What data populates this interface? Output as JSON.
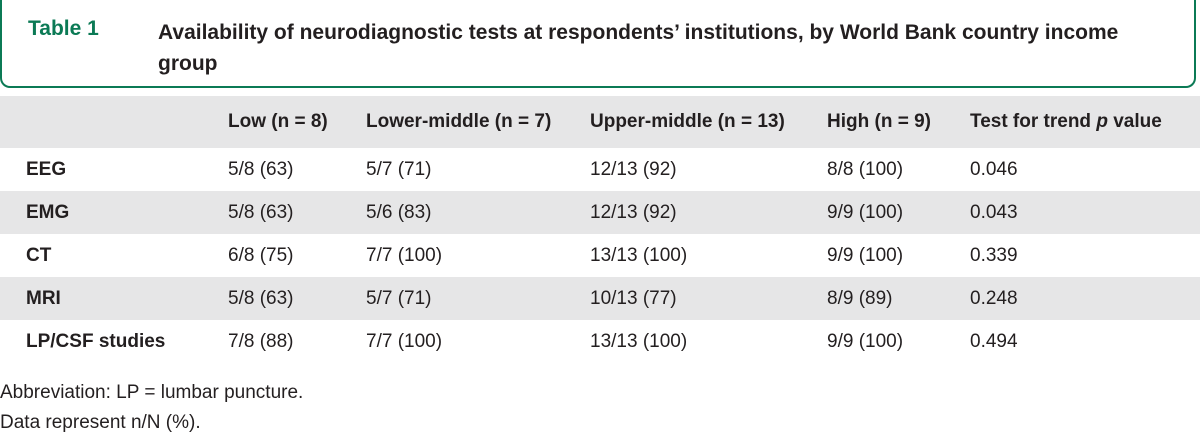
{
  "caption": {
    "label": "Table 1",
    "title": "Availability of neurodiagnostic tests at respondents’ institutions, by World Bank country income group"
  },
  "table": {
    "headers": [
      "",
      "Low (n = 8)",
      "Lower-middle (n = 7)",
      "Upper-middle (n = 13)",
      "High (n = 9)",
      "Test for trend"
    ],
    "header_p_italic": "p",
    "header_p_suffix": " value",
    "rows": [
      [
        "EEG",
        "5/8 (63)",
        "5/7 (71)",
        "12/13 (92)",
        "8/8 (100)",
        "0.046"
      ],
      [
        "EMG",
        "5/8 (63)",
        "5/6 (83)",
        "12/13 (92)",
        "9/9 (100)",
        "0.043"
      ],
      [
        "CT",
        "6/8 (75)",
        "7/7 (100)",
        "13/13 (100)",
        "9/9 (100)",
        "0.339"
      ],
      [
        "MRI",
        "5/8 (63)",
        "5/7 (71)",
        "10/13 (77)",
        "8/9 (89)",
        "0.248"
      ],
      [
        "LP/CSF studies",
        "7/8 (88)",
        "7/7 (100)",
        "13/13 (100)",
        "9/9 (100)",
        "0.494"
      ]
    ]
  },
  "footnotes": [
    "Abbreviation: LP = lumbar puncture.",
    "Data represent n/N (%)."
  ]
}
